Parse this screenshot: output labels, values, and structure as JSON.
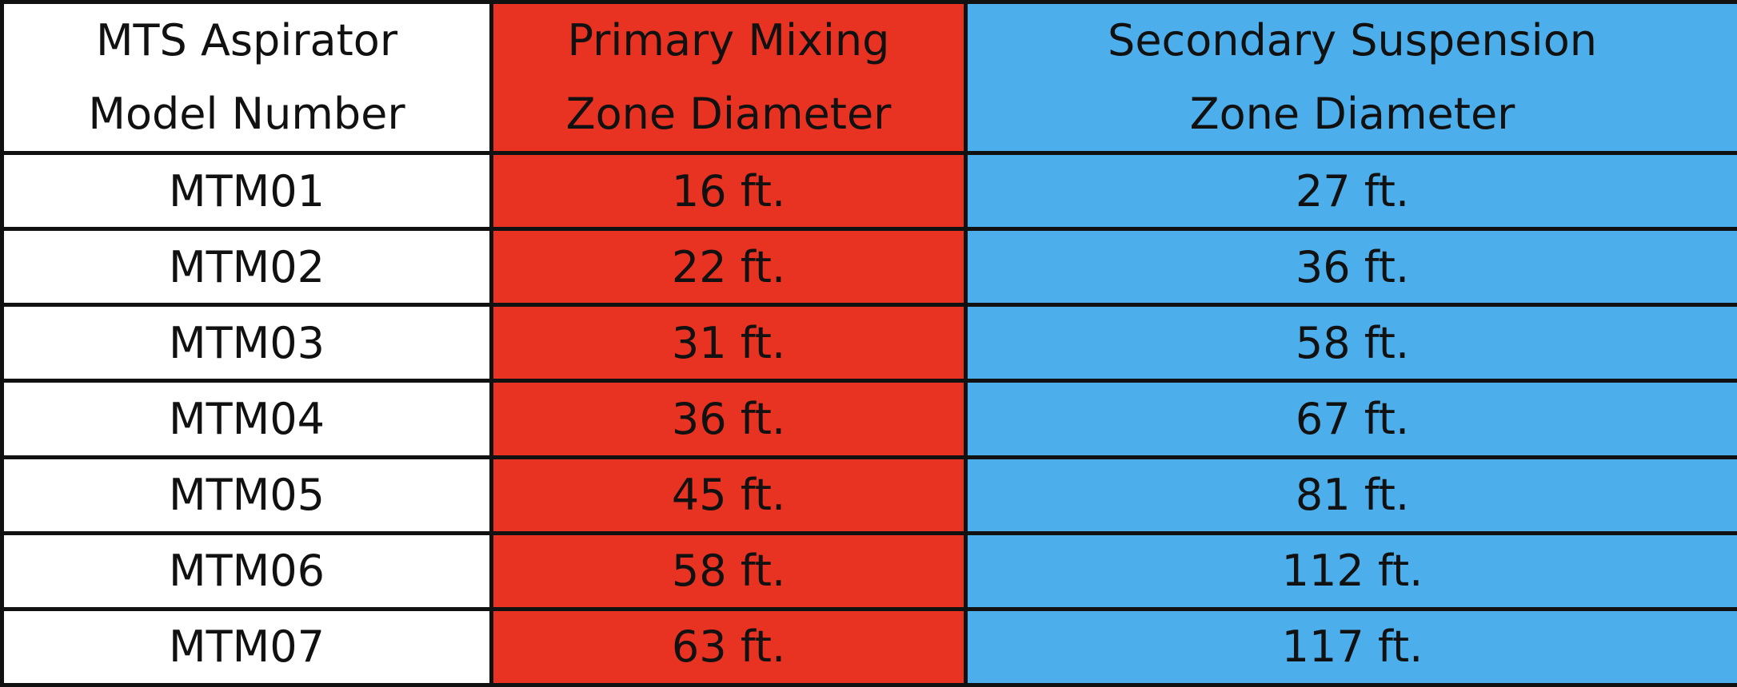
{
  "table": {
    "header": [
      [
        "MTS Aspirator",
        "Model Number"
      ],
      [
        "Primary Mixing",
        "Zone Diameter"
      ],
      [
        "Secondary Suspension",
        "Zone Diameter"
      ]
    ],
    "rows": [
      [
        "MTM01",
        "16 ft.",
        "27 ft."
      ],
      [
        "MTM02",
        "22 ft.",
        "36 ft."
      ],
      [
        "MTM03",
        "31 ft.",
        "58 ft."
      ],
      [
        "MTM04",
        "36 ft.",
        "67 ft."
      ],
      [
        "MTM05",
        "45 ft.",
        "81 ft."
      ],
      [
        "MTM06",
        "58 ft.",
        "112 ft."
      ],
      [
        "MTM07",
        "63 ft.",
        "117 ft."
      ]
    ]
  }
}
